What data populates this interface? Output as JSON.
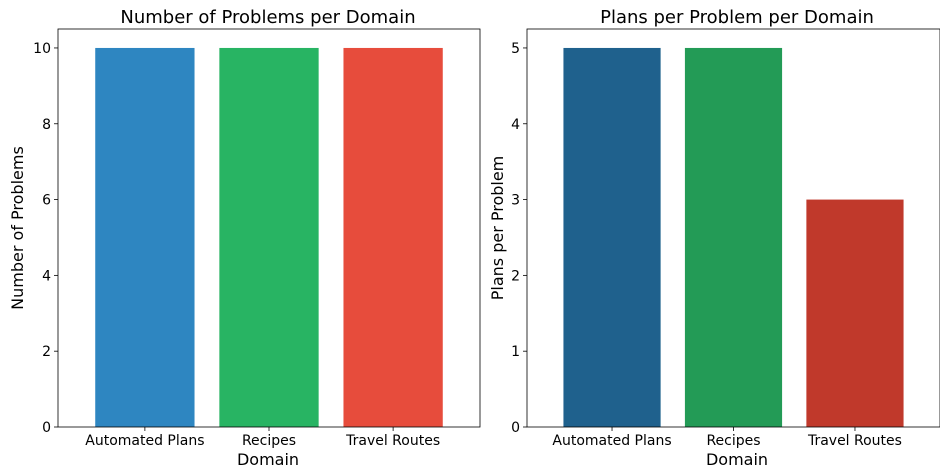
{
  "chart_data": [
    {
      "type": "bar",
      "title": "Number of Problems per Domain",
      "xlabel": "Domain",
      "ylabel": "Number of Problems",
      "categories": [
        "Automated Plans",
        "Recipes",
        "Travel Routes"
      ],
      "values": [
        10,
        10,
        10
      ],
      "colors": [
        "#2e86c1",
        "#28b463",
        "#e74c3c"
      ],
      "ylim": [
        0,
        10.5
      ],
      "yticks": [
        0,
        2,
        4,
        6,
        8,
        10
      ],
      "grid": false,
      "legend": "none"
    },
    {
      "type": "bar",
      "title": "Plans per Problem per Domain",
      "xlabel": "Domain",
      "ylabel": "Plans per Problem",
      "categories": [
        "Automated Plans",
        "Recipes",
        "Travel Routes"
      ],
      "values": [
        5,
        5,
        3
      ],
      "colors": [
        "#1f618d",
        "#239b56",
        "#c0392b"
      ],
      "ylim": [
        0,
        5.25
      ],
      "yticks": [
        0,
        1,
        2,
        3,
        4,
        5
      ],
      "grid": false,
      "legend": "none"
    }
  ]
}
